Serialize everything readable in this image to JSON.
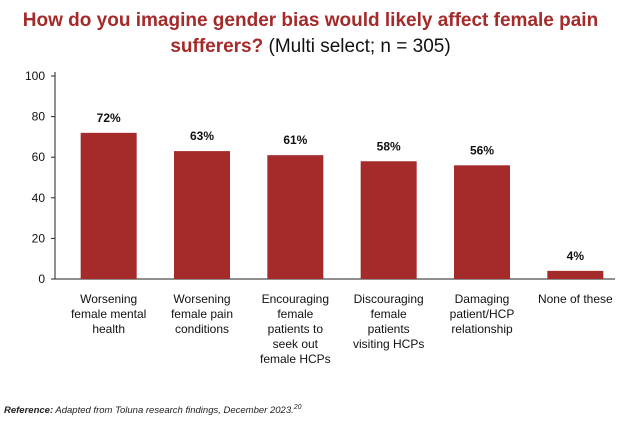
{
  "chart_data": {
    "type": "bar",
    "title": "How do you imagine gender bias would likely affect female pain sufferers?",
    "subtitle": "(Multi select; n = 305)",
    "categories": [
      [
        "Worsening",
        "female mental",
        "health"
      ],
      [
        "Worsening",
        "female pain",
        "conditions"
      ],
      [
        "Encouraging",
        "female",
        "patients to",
        "seek out",
        "female HCPs"
      ],
      [
        "Discouraging",
        "female",
        "patients",
        "visiting HCPs"
      ],
      [
        "Damaging",
        "patient/HCP",
        "relationship"
      ],
      [
        "None of these"
      ]
    ],
    "values": [
      72,
      63,
      61,
      58,
      56,
      4
    ],
    "labels": [
      "72%",
      "63%",
      "61%",
      "58%",
      "56%",
      "4%"
    ],
    "ylim": [
      0,
      100
    ],
    "yticks": [
      0,
      20,
      40,
      60,
      80,
      100
    ],
    "xlabel": "",
    "ylabel": "",
    "bar_color": "#a52a2a"
  },
  "footer": {
    "reference_label": "Reference:",
    "reference_text": " Adapted from Toluna research findings, December 2023.",
    "reference_sup": "20"
  }
}
